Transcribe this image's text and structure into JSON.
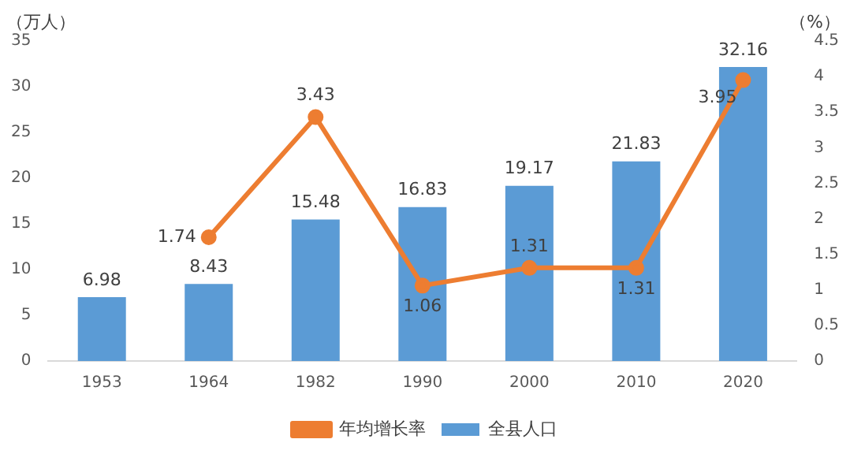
{
  "chart_data": {
    "type": "bar",
    "categories": [
      "1953",
      "1964",
      "1982",
      "1990",
      "2000",
      "2010",
      "2020"
    ],
    "ylabel": "（万人）",
    "y2label": "（%）",
    "series": [
      {
        "name": "全县人口",
        "color": "#5b9bd5",
        "values": [
          6.98,
          8.43,
          15.48,
          16.83,
          19.17,
          21.83,
          32.16
        ]
      },
      {
        "name": "年均增长率",
        "type": "line",
        "axis": "y2",
        "color": "#ed7d31",
        "marker": "circle",
        "values": [
          null,
          1.74,
          3.43,
          1.06,
          1.31,
          1.31,
          3.95
        ]
      }
    ],
    "ylim": [
      0,
      35
    ],
    "yticks": [
      0,
      5,
      10,
      15,
      20,
      25,
      30,
      35
    ],
    "y2lim": [
      0,
      4.5
    ],
    "y2ticks": [
      0,
      0.5,
      1,
      1.5,
      2,
      2.5,
      3,
      3.5,
      4,
      4.5
    ],
    "grid": false,
    "legend": "bottom",
    "data_labels": true
  }
}
